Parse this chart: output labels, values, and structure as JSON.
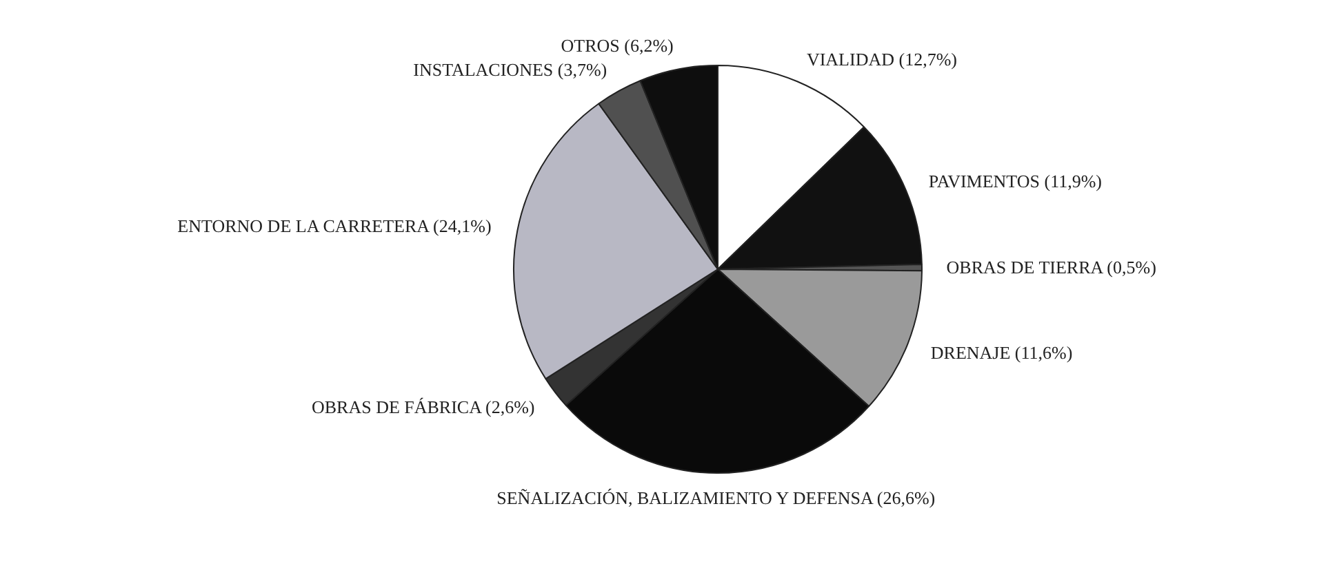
{
  "chart_data": {
    "type": "pie",
    "categories": [
      "VIALIDAD",
      "PAVIMENTOS",
      "OBRAS DE TIERRA",
      "DRENAJE",
      "SEÑALIZACIÓN, BALIZAMIENTO Y DEFENSA",
      "OBRAS DE FÁBRICA",
      "ENTORNO DE LA CARRETERA",
      "INSTALACIONES",
      "OTROS"
    ],
    "values": [
      12.7,
      11.9,
      0.5,
      11.6,
      26.6,
      2.6,
      24.1,
      3.7,
      6.2
    ],
    "value_labels": [
      "(12,7%)",
      "(11,9%)",
      "(0,5%)",
      "(11,6%)",
      "(26,6%)",
      "(2,6%)",
      "(24,1%)",
      "(3,7%)",
      "(6,2%)"
    ],
    "colors": [
      "#ffffff",
      "#111111",
      "#555555",
      "#9a9a9a",
      "#0a0a0a",
      "#333333",
      "#b8b8c4",
      "#505050",
      "#0e0e0e"
    ]
  }
}
